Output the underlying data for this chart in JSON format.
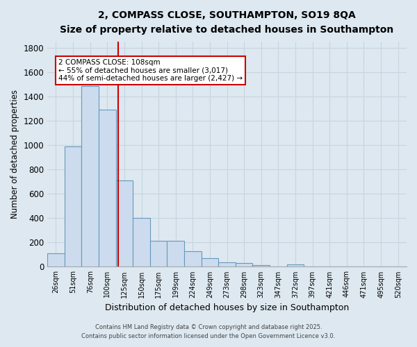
{
  "title1": "2, COMPASS CLOSE, SOUTHAMPTON, SO19 8QA",
  "title2": "Size of property relative to detached houses in Southampton",
  "xlabel": "Distribution of detached houses by size in Southampton",
  "ylabel": "Number of detached properties",
  "bar_labels": [
    "26sqm",
    "51sqm",
    "76sqm",
    "100sqm",
    "125sqm",
    "150sqm",
    "175sqm",
    "199sqm",
    "224sqm",
    "249sqm",
    "273sqm",
    "298sqm",
    "323sqm",
    "347sqm",
    "372sqm",
    "397sqm",
    "421sqm",
    "446sqm",
    "471sqm",
    "495sqm",
    "520sqm"
  ],
  "bar_heights": [
    110,
    990,
    1490,
    1295,
    710,
    405,
    215,
    215,
    130,
    70,
    38,
    30,
    15,
    5,
    20,
    0,
    0,
    0,
    0,
    0,
    0
  ],
  "bar_color": "#ccdcee",
  "bar_edge_color": "#6699bb",
  "bg_color": "#dde8f0",
  "grid_color": "#c8d4e0",
  "red_line_x": 3.62,
  "annotation_text": "2 COMPASS CLOSE: 108sqm\n← 55% of detached houses are smaller (3,017)\n44% of semi-detached houses are larger (2,427) →",
  "annotation_box_facecolor": "#ffffff",
  "annotation_border_color": "#cc0000",
  "ylim": [
    0,
    1850
  ],
  "yticks": [
    0,
    200,
    400,
    600,
    800,
    1000,
    1200,
    1400,
    1600,
    1800
  ],
  "footer1": "Contains HM Land Registry data © Crown copyright and database right 2025.",
  "footer2": "Contains public sector information licensed under the Open Government Licence v3.0."
}
